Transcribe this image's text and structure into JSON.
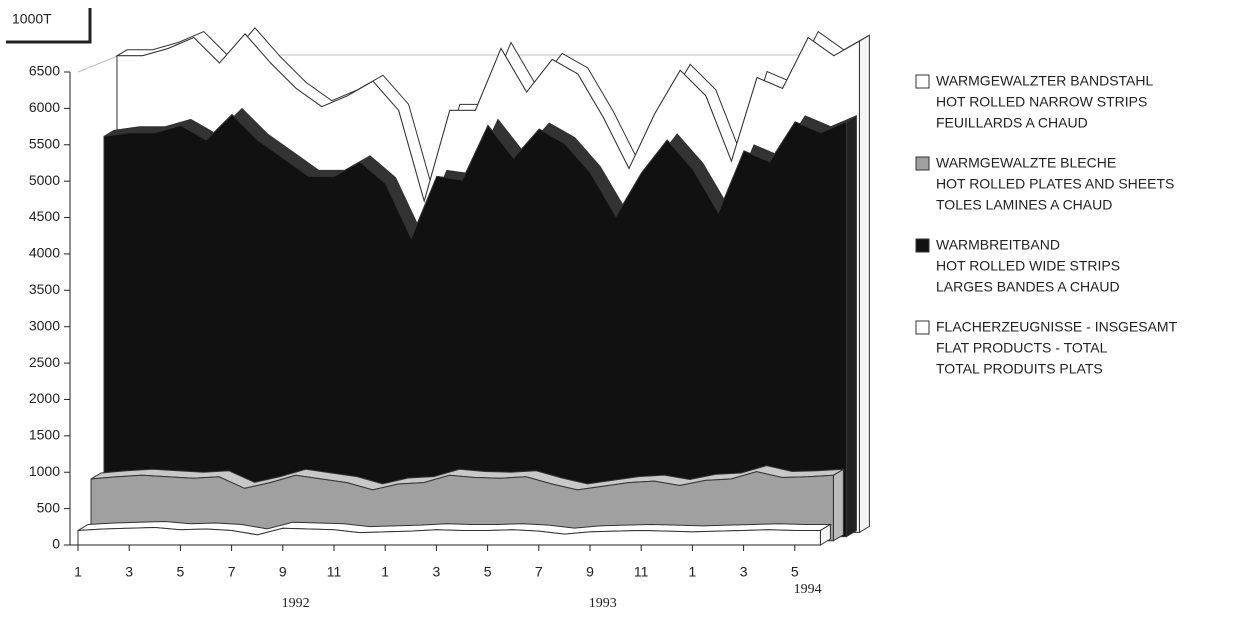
{
  "chart_data": {
    "type": "area3d",
    "unit_label": "1000T",
    "categories": [
      "1",
      null,
      "3",
      null,
      "5",
      null,
      "7",
      null,
      "9",
      null,
      "11",
      null,
      "1",
      null,
      "3",
      null,
      "5",
      null,
      "7",
      null,
      "9",
      null,
      "11",
      null,
      "1",
      null,
      "3",
      null,
      "5",
      null
    ],
    "years": [
      "1992",
      "1993",
      "1994"
    ],
    "ylim": [
      0,
      6500
    ],
    "yticks": [
      0,
      500,
      1000,
      1500,
      2000,
      2500,
      3000,
      3500,
      4000,
      4500,
      5000,
      5500,
      6000,
      6500
    ],
    "series": [
      {
        "name": [
          "WARMGEWALZTER BANDSTAHL",
          "HOT ROLLED NARROW STRIPS",
          "FEUILLARDS A CHAUD"
        ],
        "color": "#ffffff",
        "values": [
          200,
          220,
          230,
          240,
          210,
          220,
          200,
          140,
          230,
          220,
          210,
          170,
          180,
          190,
          210,
          200,
          200,
          210,
          190,
          150,
          180,
          190,
          200,
          190,
          180,
          190,
          200,
          210,
          200,
          200
        ]
      },
      {
        "name": [
          "WARMGEWALZTE BLECHE",
          "HOT ROLLED PLATES AND SHEETS",
          "TOLES LAMINES A CHAUD"
        ],
        "color": "#a0a0a0",
        "values": [
          850,
          880,
          900,
          880,
          860,
          880,
          720,
          800,
          900,
          850,
          800,
          700,
          780,
          800,
          900,
          870,
          860,
          880,
          780,
          700,
          750,
          800,
          820,
          760,
          830,
          850,
          950,
          870,
          880,
          900
        ]
      },
      {
        "name": [
          "WARMBREITBAND",
          "HOT ROLLED WIDE STRIPS",
          "LARGES BANDES A CHAUD"
        ],
        "color": "#111111",
        "values": [
          5500,
          5550,
          5550,
          5650,
          5450,
          5800,
          5450,
          5200,
          4950,
          4950,
          5150,
          4850,
          4100,
          4950,
          4900,
          5650,
          5200,
          5600,
          5400,
          5000,
          4400,
          5000,
          5450,
          5050,
          4450,
          5300,
          5150,
          5700,
          5550,
          5700
        ]
      },
      {
        "name": [
          "FLACHERZEUGNISSE - INSGESAMT",
          "FLAT PRODUCTS - TOTAL",
          "TOTAL PRODUITS PLATS"
        ],
        "color": "#ffffff",
        "values": [
          6550,
          6550,
          6650,
          6800,
          6450,
          6850,
          6450,
          6100,
          5850,
          6000,
          6200,
          5800,
          4550,
          5800,
          5800,
          6650,
          6050,
          6500,
          6300,
          5700,
          5000,
          5750,
          6350,
          6000,
          5100,
          6250,
          6100,
          6800,
          6550,
          6750
        ]
      }
    ]
  }
}
